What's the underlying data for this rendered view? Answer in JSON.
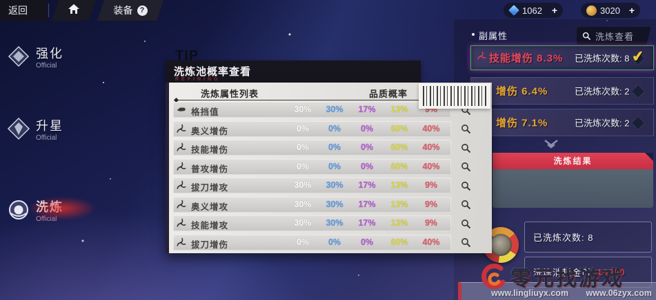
{
  "topbar": {
    "back_label": "返回",
    "equip_label": "装备",
    "help_label": "?",
    "plus_label": "+",
    "currencies": [
      {
        "name": "crystal",
        "value": "1062"
      },
      {
        "name": "gold",
        "value": "3020"
      }
    ]
  },
  "sidebar": {
    "items": [
      {
        "label": "强化",
        "sub": "Official",
        "active": false
      },
      {
        "label": "升星",
        "sub": "Official",
        "active": false
      },
      {
        "label": "洗炼",
        "sub": "Official",
        "active": true
      }
    ]
  },
  "modal": {
    "tip_label": "TIP",
    "title": "洗炼池概率查看",
    "subtitle": "REFINING",
    "columns": {
      "attr": "洗炼属性列表",
      "quality": "品质概率"
    },
    "value_colors": [
      "#fdfcfa",
      "#5c9ce6",
      "#b558d8",
      "#d9d943",
      "#e05b68"
    ],
    "rows": [
      {
        "name": "格挡值",
        "icon": "fist",
        "values": [
          "30%",
          "30%",
          "17%",
          "13%",
          "9%"
        ]
      },
      {
        "name": "奥义增伤",
        "icon": "spiral",
        "values": [
          "0%",
          "0%",
          "0%",
          "60%",
          "40%"
        ]
      },
      {
        "name": "技能增伤",
        "icon": "spiral",
        "values": [
          "0%",
          "0%",
          "0%",
          "60%",
          "40%"
        ]
      },
      {
        "name": "普攻增伤",
        "icon": "spiral",
        "values": [
          "0%",
          "0%",
          "0%",
          "60%",
          "40%"
        ]
      },
      {
        "name": "拔刀增攻",
        "icon": "spiral",
        "values": [
          "30%",
          "30%",
          "17%",
          "13%",
          "9%"
        ]
      },
      {
        "name": "奥义增攻",
        "icon": "spiral",
        "values": [
          "30%",
          "30%",
          "17%",
          "13%",
          "9%"
        ]
      },
      {
        "name": "技能增攻",
        "icon": "spiral",
        "values": [
          "30%",
          "30%",
          "17%",
          "13%",
          "9%"
        ]
      },
      {
        "name": "拔刀增伤",
        "icon": "spiral",
        "values": [
          "0%",
          "0%",
          "0%",
          "60%",
          "40%"
        ]
      }
    ]
  },
  "right_panel": {
    "section_title": "副属性",
    "search_label": "洗炼查看",
    "attributes": [
      {
        "label": "技能增伤 8.3%",
        "count_label": "已洗炼次数: 8",
        "state": "checked",
        "color": "#e8465a",
        "has_icon": true
      },
      {
        "label": "增伤 6.4%",
        "count_label": "已洗炼次数: 2",
        "state": "diamond",
        "color": "#e8a832",
        "has_icon": false
      },
      {
        "label": "增伤 7.1%",
        "count_label": "已洗炼次数: 2",
        "state": "diamond",
        "color": "#e8a832",
        "has_icon": false
      }
    ],
    "result_label": "洗炼结果",
    "refined_count": "已洗炼次数: 8",
    "cost_label": "洗炼消耗金币:",
    "cost_value": "10000"
  },
  "watermark": {
    "logo_text": "零元找游戏",
    "url1": "www.lingliuyx.com",
    "url2": "www.06zyx.com"
  }
}
